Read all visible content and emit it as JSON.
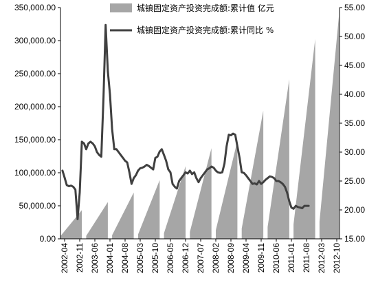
{
  "chart_data": {
    "type": "combo",
    "series": [
      {
        "name": "城镇固定资产投资完成额:累计值 亿元",
        "type": "area",
        "axis": "left",
        "color": "#a6a6a6",
        "points": [
          [
            "2002-02",
            3800
          ],
          [
            "2002-12",
            43500
          ],
          [
            "2003-02",
            4500
          ],
          [
            "2003-12",
            55600
          ],
          [
            "2004-02",
            5500
          ],
          [
            "2004-12",
            70100
          ],
          [
            "2005-02",
            6700
          ],
          [
            "2005-12",
            88800
          ],
          [
            "2006-02",
            8500
          ],
          [
            "2006-12",
            109900
          ],
          [
            "2007-02",
            10500
          ],
          [
            "2007-12",
            137200
          ],
          [
            "2008-02",
            13000
          ],
          [
            "2008-12",
            148200
          ],
          [
            "2009-02",
            15500
          ],
          [
            "2009-12",
            194100
          ],
          [
            "2010-02",
            18000
          ],
          [
            "2010-12",
            241400
          ],
          [
            "2011-02",
            22000
          ],
          [
            "2011-12",
            302400
          ],
          [
            "2012-02",
            26000
          ],
          [
            "2012-11",
            337000
          ]
        ]
      },
      {
        "name": "城镇固定资产投资完成额:累计同比 %",
        "type": "line",
        "axis": "right",
        "color": "#404040",
        "points": [
          [
            "2002-03",
            26.8
          ],
          [
            "2002-04",
            25.6
          ],
          [
            "2002-05",
            24.3
          ],
          [
            "2002-06",
            24.1
          ],
          [
            "2002-07",
            24.2
          ],
          [
            "2002-08",
            24.0
          ],
          [
            "2002-09",
            23.5
          ],
          [
            "2002-10",
            18.4
          ],
          [
            "2002-11",
            23.0
          ],
          [
            "2002-12",
            31.8
          ],
          [
            "2003-01",
            31.5
          ],
          [
            "2003-02",
            30.5
          ],
          [
            "2003-03",
            31.5
          ],
          [
            "2003-04",
            31.8
          ],
          [
            "2003-05",
            31.5
          ],
          [
            "2003-06",
            31.0
          ],
          [
            "2003-07",
            30.0
          ],
          [
            "2003-08",
            29.5
          ],
          [
            "2003-09",
            29.2
          ],
          [
            "2003-10",
            39.5
          ],
          [
            "2003-11",
            52.0
          ],
          [
            "2003-12",
            44.0
          ],
          [
            "2004-01",
            40.0
          ],
          [
            "2004-02",
            34.0
          ],
          [
            "2004-03",
            30.5
          ],
          [
            "2004-04",
            30.5
          ],
          [
            "2004-05",
            30.0
          ],
          [
            "2004-06",
            29.5
          ],
          [
            "2004-07",
            29.0
          ],
          [
            "2004-08",
            28.5
          ],
          [
            "2004-09",
            28.2
          ],
          [
            "2004-10",
            26.5
          ],
          [
            "2004-11",
            24.5
          ],
          [
            "2004-12",
            25.5
          ],
          [
            "2005-01",
            26.0
          ],
          [
            "2005-02",
            26.8
          ],
          [
            "2005-03",
            27.2
          ],
          [
            "2005-04",
            27.3
          ],
          [
            "2005-05",
            27.5
          ],
          [
            "2005-06",
            27.8
          ],
          [
            "2005-07",
            27.6
          ],
          [
            "2005-08",
            27.3
          ],
          [
            "2005-09",
            27.0
          ],
          [
            "2005-10",
            29.0
          ],
          [
            "2005-11",
            29.2
          ],
          [
            "2005-12",
            30.1
          ],
          [
            "2006-01",
            30.5
          ],
          [
            "2006-02",
            29.5
          ],
          [
            "2006-03",
            28.5
          ],
          [
            "2006-04",
            27.0
          ],
          [
            "2006-05",
            26.5
          ],
          [
            "2006-06",
            24.5
          ],
          [
            "2006-07",
            24.0
          ],
          [
            "2006-08",
            23.7
          ],
          [
            "2006-09",
            25.0
          ],
          [
            "2006-10",
            25.5
          ],
          [
            "2006-11",
            26.0
          ],
          [
            "2006-12",
            26.5
          ],
          [
            "2007-01",
            26.3
          ],
          [
            "2007-02",
            26.8
          ],
          [
            "2007-03",
            26.2
          ],
          [
            "2007-04",
            26.5
          ],
          [
            "2007-05",
            25.5
          ],
          [
            "2007-06",
            24.8
          ],
          [
            "2007-07",
            25.5
          ],
          [
            "2007-08",
            26.0
          ],
          [
            "2007-09",
            26.5
          ],
          [
            "2007-10",
            27.0
          ],
          [
            "2007-11",
            27.2
          ],
          [
            "2007-12",
            27.5
          ],
          [
            "2008-01",
            27.3
          ],
          [
            "2008-02",
            26.8
          ],
          [
            "2008-03",
            26.5
          ],
          [
            "2008-04",
            26.4
          ],
          [
            "2008-05",
            26.5
          ],
          [
            "2008-06",
            28.0
          ],
          [
            "2008-07",
            31.0
          ],
          [
            "2008-08",
            33.0
          ],
          [
            "2008-09",
            32.9
          ],
          [
            "2008-10",
            33.2
          ],
          [
            "2008-11",
            33.0
          ],
          [
            "2008-12",
            31.0
          ],
          [
            "2009-01",
            29.0
          ],
          [
            "2009-02",
            26.5
          ],
          [
            "2009-03",
            26.4
          ],
          [
            "2009-04",
            26.0
          ],
          [
            "2009-05",
            25.5
          ],
          [
            "2009-06",
            25.0
          ],
          [
            "2009-07",
            24.5
          ],
          [
            "2009-08",
            24.6
          ],
          [
            "2009-09",
            24.4
          ],
          [
            "2009-10",
            25.0
          ],
          [
            "2009-11",
            24.5
          ],
          [
            "2009-12",
            24.8
          ],
          [
            "2010-01",
            25.2
          ],
          [
            "2010-02",
            25.5
          ],
          [
            "2010-03",
            25.8
          ],
          [
            "2010-04",
            25.7
          ],
          [
            "2010-05",
            25.5
          ],
          [
            "2010-06",
            25.0
          ],
          [
            "2010-07",
            25.0
          ],
          [
            "2010-08",
            24.8
          ],
          [
            "2010-09",
            24.5
          ],
          [
            "2010-10",
            24.0
          ],
          [
            "2010-11",
            23.0
          ],
          [
            "2010-12",
            21.5
          ],
          [
            "2011-01",
            20.4
          ],
          [
            "2011-02",
            20.2
          ],
          [
            "2011-03",
            20.7
          ],
          [
            "2011-04",
            20.5
          ],
          [
            "2011-05",
            20.4
          ],
          [
            "2011-06",
            20.3
          ],
          [
            "2011-07",
            20.7
          ],
          [
            "2011-08",
            20.7
          ],
          [
            "2011-09",
            20.7
          ]
        ]
      }
    ],
    "x_labels": [
      "2002-04",
      "2002-11",
      "2003-06",
      "2004-01",
      "2004-08",
      "2005-03",
      "2005-10",
      "2006-05",
      "2006-12",
      "2007-07",
      "2008-02",
      "2008-09",
      "2009-04",
      "2009-11",
      "2010-06",
      "2011-01",
      "2011-08",
      "2012-03",
      "2012-10"
    ],
    "y_left": {
      "ylim": [
        0,
        350000
      ],
      "ticks": [
        "0.00",
        "50,000.00",
        "100,000.00",
        "150,000.00",
        "200,000.00",
        "250,000.00",
        "300,000.00",
        "350,000.00"
      ]
    },
    "y_right": {
      "ylim": [
        15,
        55
      ],
      "ticks": [
        "15.00",
        "20.00",
        "25.00",
        "30.00",
        "35.00",
        "40.00",
        "45.00",
        "50.00",
        "55.00"
      ]
    },
    "legend": [
      {
        "label": "城镇固定资产投资完成额:累计值 亿元",
        "kind": "area"
      },
      {
        "label": "城镇固定资产投资完成额:累计同比 %",
        "kind": "line"
      }
    ],
    "legend_position": "top",
    "grid": false
  }
}
